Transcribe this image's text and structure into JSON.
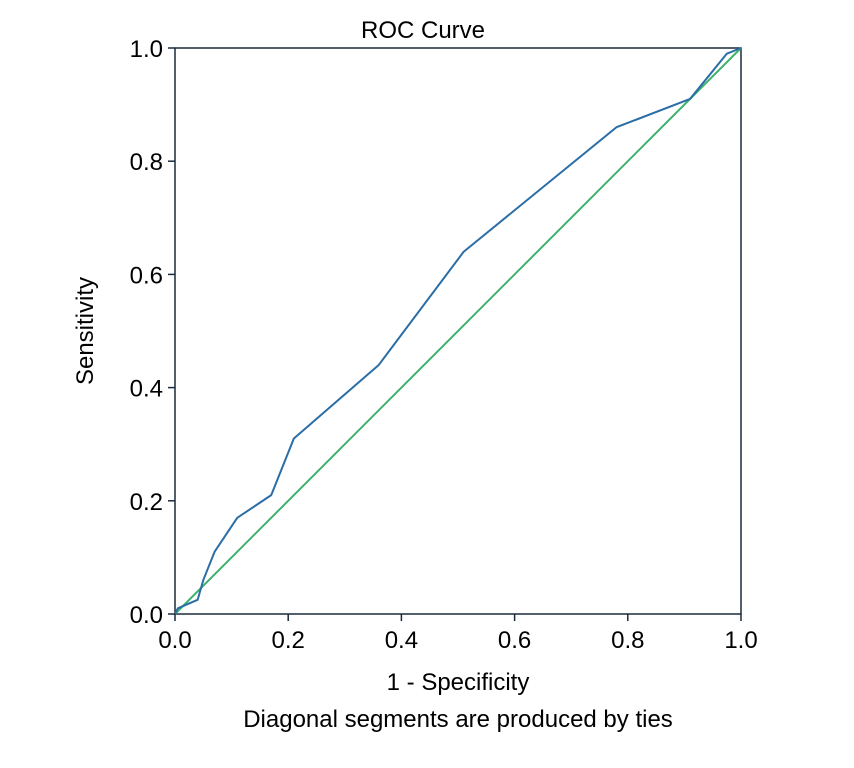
{
  "chart_data": {
    "type": "line",
    "title": "ROC Curve",
    "xlabel": "1 - Specificity",
    "ylabel": "Sensitivity",
    "footnote": "Diagonal segments are produced by ties",
    "xlim": [
      0.0,
      1.0
    ],
    "ylim": [
      0.0,
      1.0
    ],
    "xticks": [
      "0.0",
      "0.2",
      "0.4",
      "0.6",
      "0.8",
      "1.0"
    ],
    "yticks": [
      "0.0",
      "0.2",
      "0.4",
      "0.6",
      "0.8",
      "1.0"
    ],
    "grid": false,
    "series": [
      {
        "color": "#2b6ea6",
        "x": [
          0.0,
          0.005,
          0.04,
          0.05,
          0.07,
          0.11,
          0.17,
          0.21,
          0.36,
          0.51,
          0.78,
          0.91,
          0.975,
          1.0,
          1.0
        ],
        "y": [
          0.0,
          0.01,
          0.025,
          0.06,
          0.11,
          0.17,
          0.21,
          0.31,
          0.44,
          0.64,
          0.86,
          0.91,
          0.99,
          1.0,
          1.0
        ]
      },
      {
        "color": "#3fb36b",
        "x": [
          0.0,
          1.0
        ],
        "y": [
          0.0,
          1.0
        ]
      }
    ]
  }
}
